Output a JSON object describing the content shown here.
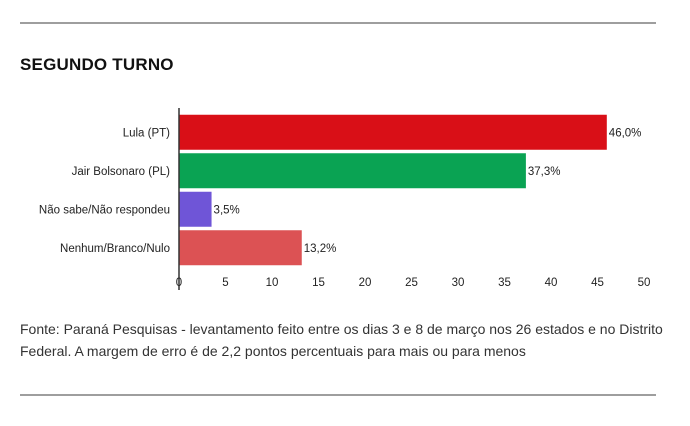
{
  "header": {
    "title": "SEGUNDO TURNO"
  },
  "chart_data": {
    "type": "bar",
    "orientation": "horizontal",
    "categories": [
      "Lula (PT)",
      "Jair Bolsonaro (PL)",
      "Não sabe/Não respondeu",
      "Nenhum/Branco/Nulo"
    ],
    "values": [
      46.0,
      37.3,
      3.5,
      13.2
    ],
    "value_labels": [
      "46,0%",
      "37,3%",
      "3,5%",
      "13,2%"
    ],
    "colors": [
      "#d90f17",
      "#0aa353",
      "#6f55d7",
      "#dc5254"
    ],
    "xlim": [
      0,
      50
    ],
    "xticks": [
      0,
      5,
      10,
      15,
      20,
      25,
      30,
      35,
      40,
      45,
      50
    ],
    "grid": false
  },
  "footer": {
    "source": "Fonte: Paraná Pesquisas - levantamento feito entre os dias 3 e 8 de março nos 26 estados e no Distrito Federal. A margem de erro é de 2,2 pontos percentuais para mais ou para menos"
  }
}
